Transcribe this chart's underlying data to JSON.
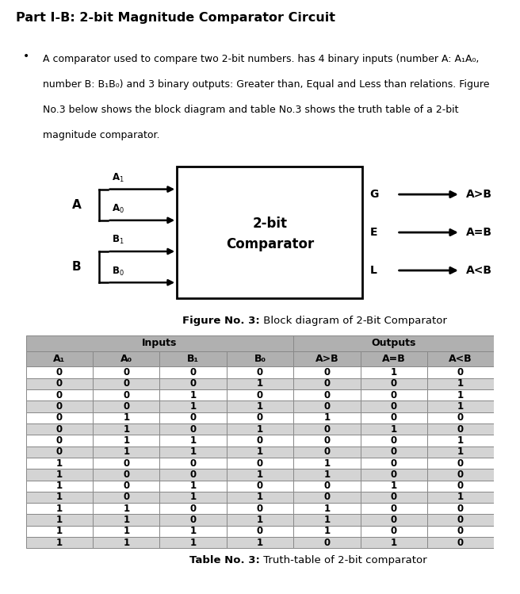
{
  "title": "Part I-B: 2-bit Magnitude Comparator Circuit",
  "desc_lines": [
    "A comparator used to compare two 2-bit numbers. has 4 binary inputs (number A: A₁A₀,",
    "number B: B₁B₀) and 3 binary outputs: Greater than, Equal and Less than relations. Figure",
    "No.3 below shows the block diagram and table No.3 shows the truth table of a 2-bit",
    "magnitude comparator."
  ],
  "fig_caption_bold": "Figure No. 3:",
  "fig_caption_normal": " Block diagram of 2-Bit Comparator",
  "table_caption_bold": "Table No. 3:",
  "table_caption_normal": " Truth-table of 2-bit comparator",
  "table_headers": [
    "A₁",
    "A₀",
    "B₁",
    "B₀",
    "A>B",
    "A=B",
    "A<B"
  ],
  "col_groups": [
    "Inputs",
    "Outputs"
  ],
  "table_data": [
    [
      0,
      0,
      0,
      0,
      0,
      1,
      0
    ],
    [
      0,
      0,
      0,
      1,
      0,
      0,
      1
    ],
    [
      0,
      0,
      1,
      0,
      0,
      0,
      1
    ],
    [
      0,
      0,
      1,
      1,
      0,
      0,
      1
    ],
    [
      0,
      1,
      0,
      0,
      1,
      0,
      0
    ],
    [
      0,
      1,
      0,
      1,
      0,
      1,
      0
    ],
    [
      0,
      1,
      1,
      0,
      0,
      0,
      1
    ],
    [
      0,
      1,
      1,
      1,
      0,
      0,
      1
    ],
    [
      1,
      0,
      0,
      0,
      1,
      0,
      0
    ],
    [
      1,
      0,
      0,
      1,
      1,
      0,
      0
    ],
    [
      1,
      0,
      1,
      0,
      0,
      1,
      0
    ],
    [
      1,
      0,
      1,
      1,
      0,
      0,
      1
    ],
    [
      1,
      1,
      0,
      0,
      1,
      0,
      0
    ],
    [
      1,
      1,
      0,
      1,
      1,
      0,
      0
    ],
    [
      1,
      1,
      1,
      0,
      1,
      0,
      0
    ],
    [
      1,
      1,
      1,
      1,
      0,
      1,
      0
    ]
  ],
  "bg_white": "#ffffff",
  "bg_gray": "#d4d4d4",
  "bg_header": "#b0b0b0",
  "border_color": "#888888"
}
